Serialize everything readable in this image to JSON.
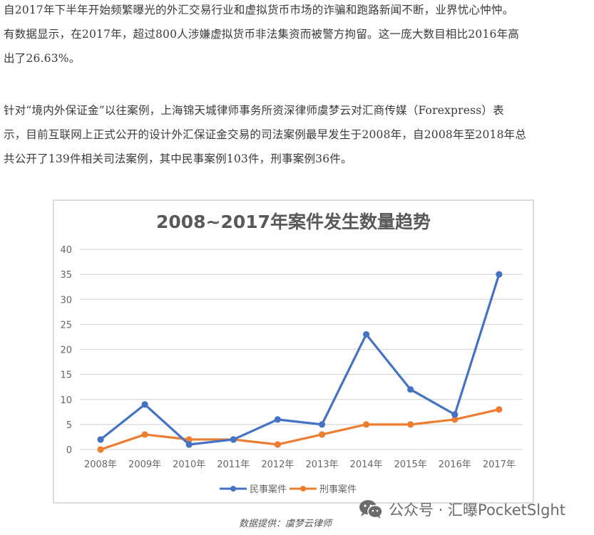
{
  "article": {
    "paragraph1": [
      "自2017年下半年开始频繁曝光的外汇交易行业和虚拟货币市场的诈骗和跑路新闻不断，业界忧心忡忡。",
      "有数据显示，在2017年，超过800人涉嫌虚拟货币非法集资而被警方拘留。这一庞大数目相比2016年高",
      "出了26.63%。"
    ],
    "paragraph2": [
      "针对“境内外保证金”以往案例，上海锦天城律师事务所资深律师虞梦云对汇商传媒（Forexpress）表",
      "示，目前互联网上正式公开的设计外汇保证金交易的司法案例最早发生于2008年，自2008年至2018年总",
      "共公开了139件相关司法案例，其中民事案例103件，刑事案例36件。"
    ]
  },
  "chart_data": {
    "type": "line",
    "title": "2008~2017年案件发生数量趋势",
    "xlabel": "",
    "ylabel": "",
    "categories": [
      "2008年",
      "2009年",
      "2010年",
      "2011年",
      "2012年",
      "2013年",
      "2014年",
      "2015年",
      "2016年",
      "2017年"
    ],
    "series": [
      {
        "name": "民事案件",
        "color": "#4472c4",
        "values": [
          2,
          9,
          1,
          2,
          6,
          5,
          23,
          12,
          7,
          35
        ]
      },
      {
        "name": "刑事案件",
        "color": "#ed7d31",
        "values": [
          0,
          3,
          2,
          2,
          1,
          3,
          5,
          5,
          6,
          8
        ]
      }
    ],
    "ylim": [
      0,
      40
    ],
    "yticks": [
      0,
      5,
      10,
      15,
      20,
      25,
      30,
      35,
      40
    ],
    "grid": true,
    "legend_position": "bottom",
    "markers": true
  },
  "caption": "数据提供：虞梦云律师",
  "watermark": {
    "icon": "wechat-icon",
    "text": "公众号 · 汇曝PocketSlght"
  }
}
